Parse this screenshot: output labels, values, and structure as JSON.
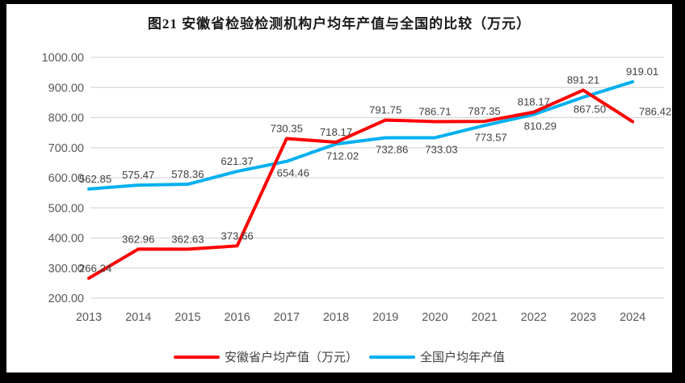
{
  "title": "图21 安徽省检验检测机构户均年产值与全国的比较（万元）",
  "colors": {
    "frame": "#000000",
    "canvas": "#FFFFFF",
    "anhui_line": "#FF0000",
    "national_line": "#00B0F0",
    "gridline": "#D9D9D9",
    "axis_text": "#595959",
    "data_label_text": "#404040",
    "title_text": "#1A1A1A"
  },
  "chart_data": {
    "type": "line",
    "title": "图21 安徽省检验检测机构户均年产值与全国的比较（万元）",
    "categories": [
      "2013",
      "2014",
      "2015",
      "2016",
      "2017",
      "2018",
      "2019",
      "2020",
      "2021",
      "2022",
      "2023",
      "2024"
    ],
    "series": [
      {
        "name": "安徽省户均产值（万元）",
        "color": "#FF0000",
        "values": [
          266.24,
          362.96,
          362.63,
          373.66,
          730.35,
          718.17,
          791.75,
          786.71,
          787.35,
          818.17,
          891.21,
          786.42
        ],
        "label_placement": [
          "above",
          "above",
          "above",
          "above",
          "above",
          "above",
          "above",
          "above",
          "above",
          "above",
          "above",
          "above"
        ]
      },
      {
        "name": "全国户均年产值",
        "color": "#00B0F0",
        "values": [
          562.85,
          575.47,
          578.36,
          621.37,
          654.46,
          712.02,
          732.86,
          733.03,
          773.57,
          810.29,
          867.5,
          919.01
        ],
        "label_placement": [
          "above",
          "above",
          "above",
          "above",
          "below",
          "below",
          "below",
          "below",
          "below",
          "below",
          "below",
          "above"
        ]
      }
    ],
    "ylim": [
      200,
      1000
    ],
    "ytick_step": 100,
    "yticks": [
      "1000.00",
      "900.00",
      "800.00",
      "700.00",
      "600.00",
      "500.00",
      "400.00",
      "300.00",
      "200.00"
    ],
    "xticks": [
      "2013",
      "2014",
      "2015",
      "2016",
      "2017",
      "2018",
      "2019",
      "2020",
      "2021",
      "2022",
      "2023",
      "2024"
    ],
    "value_format": "0.00",
    "grid": true,
    "legend_position": "bottom",
    "data_labels": true
  }
}
